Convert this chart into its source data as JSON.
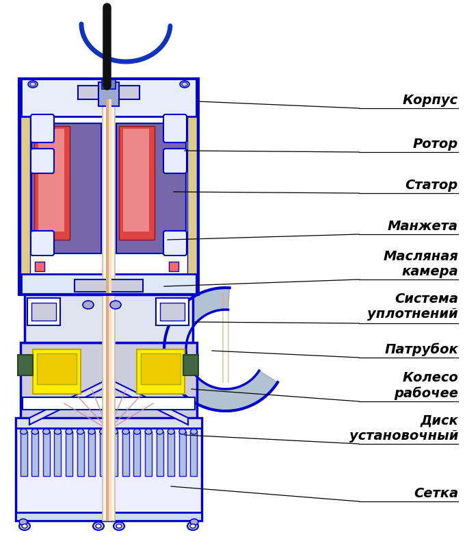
{
  "bg_color": "#ffffff",
  "pump_blue": "#0000cc",
  "pump_blue2": "#2222ee",
  "rotor_red": "#dd4444",
  "rotor_red2": "#cc6666",
  "stator_purple": "#7766aa",
  "stator_purple2": "#9988bb",
  "shaft_white": "#f8f5ee",
  "shaft_orange": "#ddaa88",
  "yellow": "#ffee00",
  "yellow2": "#ddcc00",
  "green_dark": "#446644",
  "green_dark2": "#336633",
  "gray_light": "#ccccdd",
  "gray_med": "#aaaacc",
  "blue_light": "#aabbdd",
  "blue_pale": "#ddeeff",
  "white_": "#ffffff",
  "cable_black": "#111111",
  "cable_blue": "#1133bb",
  "gold": "#ddcc88",
  "pink_light": "#ffcccc",
  "lavender": "#ccbbdd",
  "labels": [
    "Корпус",
    "Ротор",
    "Статор",
    "Манжета",
    "Масляная\nкамера",
    "Система\nуплотнений",
    "Патрубок",
    "Колесо\nрабочее",
    "Диск\nустановочный",
    "Сетка"
  ],
  "figsize": [
    6.8,
    8.0
  ],
  "dpi": 100,
  "font_size": 14
}
